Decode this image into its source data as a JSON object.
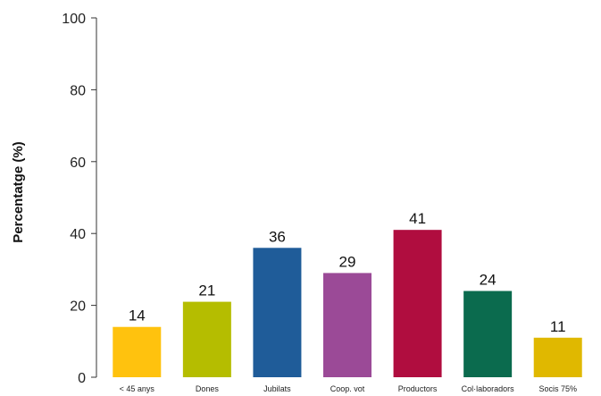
{
  "chart_data": {
    "type": "bar",
    "title": "",
    "xlabel": "",
    "ylabel": "Percentatge (%)",
    "ylim": [
      0,
      100
    ],
    "yticks": [
      "0",
      "20",
      "40",
      "60",
      "80",
      "100"
    ],
    "grid": false,
    "legend": "none",
    "categories": [
      "< 45 anys",
      "Dones",
      "Jubilats",
      "Coop. vot",
      "Productors",
      "Col·laboradors",
      "Socis 75%"
    ],
    "values": [
      14,
      21,
      36,
      29,
      41,
      24,
      11
    ],
    "data_labels": [
      "14",
      "21",
      "36",
      "29",
      "41",
      "24",
      "11"
    ],
    "colors": [
      "#FFC20E",
      "#B5BD00",
      "#1F5C99",
      "#9B4A97",
      "#B00D3F",
      "#0B6B4E",
      "#E0B800"
    ]
  }
}
